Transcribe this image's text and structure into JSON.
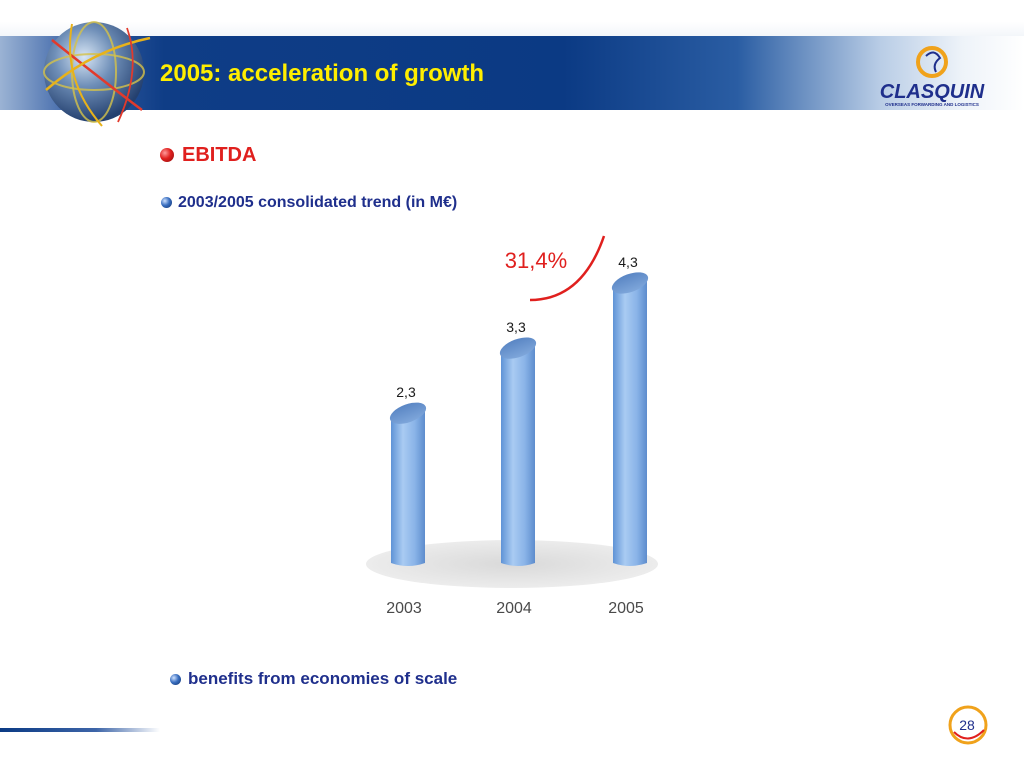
{
  "slide": {
    "title": "2005: acceleration of growth",
    "heading": "EBITDA",
    "subtitle": "2003/2005 consolidated trend (in M€)",
    "footnote": "benefits from economies of scale",
    "page_number": "28"
  },
  "logo": {
    "name": "CLASQUIN",
    "tagline": "OVERSEAS FORWARDING AND LOGISTICS"
  },
  "colors": {
    "header_blue": "#0b3a84",
    "title_yellow": "#ffee00",
    "heading_red": "#e0201e",
    "text_navy": "#1f2f8c",
    "bar_blue": "#8ab4e8"
  },
  "chart_data": {
    "type": "bar",
    "categories": [
      "2003",
      "2004",
      "2005"
    ],
    "values": [
      2.3,
      3.3,
      4.3
    ],
    "data_labels": [
      "2,3",
      "3,3",
      "4,3"
    ],
    "annotation": "31,4%",
    "title": "",
    "xlabel": "",
    "ylabel": "",
    "ylim": [
      0,
      4.3
    ],
    "grid": false,
    "legend": "none"
  }
}
